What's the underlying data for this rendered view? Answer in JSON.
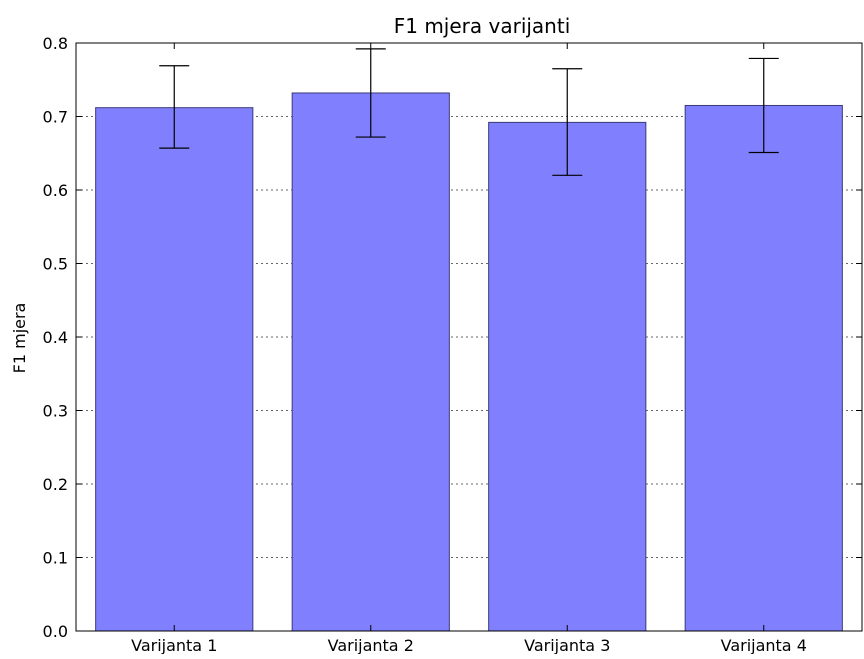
{
  "chart_data": {
    "type": "bar",
    "title": "F1 mjera varijanti",
    "xlabel": "",
    "ylabel": "F1 mjera",
    "categories": [
      "Varijanta 1",
      "Varijanta 2",
      "Varijanta 3",
      "Varijanta 4"
    ],
    "values": [
      0.712,
      0.732,
      0.692,
      0.715
    ],
    "error_low": [
      0.657,
      0.672,
      0.62,
      0.651
    ],
    "error_high": [
      0.769,
      0.792,
      0.765,
      0.779
    ],
    "ylim": [
      0.0,
      0.8
    ],
    "yticks": [
      "0.0",
      "0.1",
      "0.2",
      "0.3",
      "0.4",
      "0.5",
      "0.6",
      "0.7",
      "0.8"
    ],
    "grid": "horizontal dotted",
    "colors": {
      "bar_fill": "#8080ff",
      "bar_edge": "#3a3a7a",
      "error_bar": "#000000",
      "grid": "#666666"
    }
  }
}
